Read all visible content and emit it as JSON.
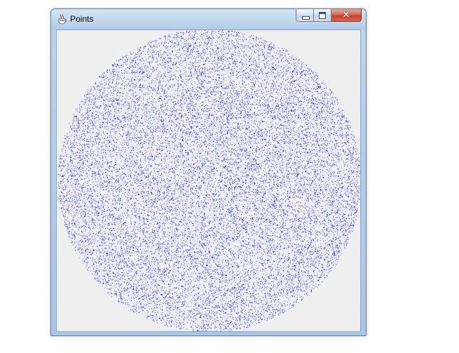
{
  "window": {
    "title": "Points",
    "icon": "java-cup-icon",
    "controls": {
      "minimize_icon": "minimize-icon",
      "maximize_icon": "maximize-icon",
      "close_icon": "close-icon"
    }
  },
  "canvas": {
    "background_color": "#efefef",
    "point_color": "#0000ff",
    "shape": "disc"
  }
}
